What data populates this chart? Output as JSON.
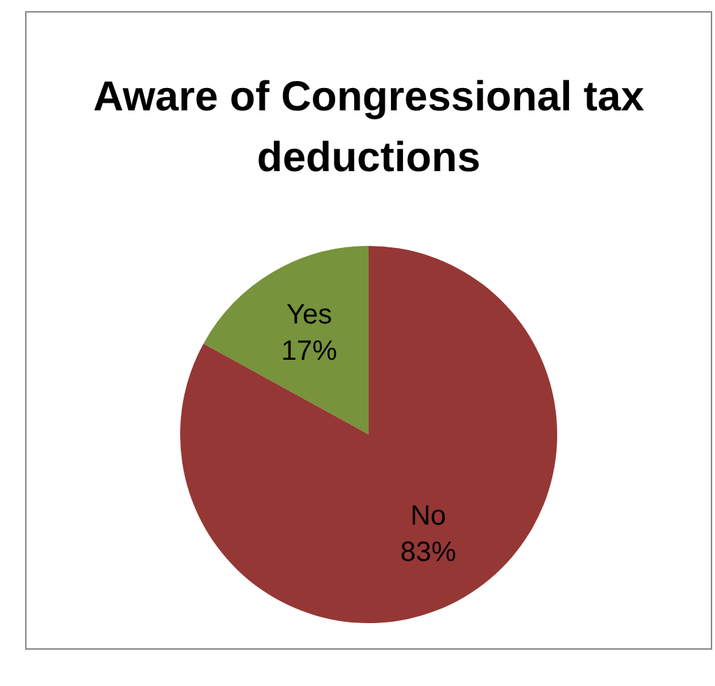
{
  "chart_data": {
    "type": "pie",
    "title": "Aware of Congressional tax deductions",
    "categories": [
      "Yes",
      "No"
    ],
    "values": [
      17,
      83
    ],
    "colors": [
      "#77933c",
      "#953735"
    ],
    "value_labels": [
      "17%",
      "83%"
    ],
    "legend": false
  }
}
